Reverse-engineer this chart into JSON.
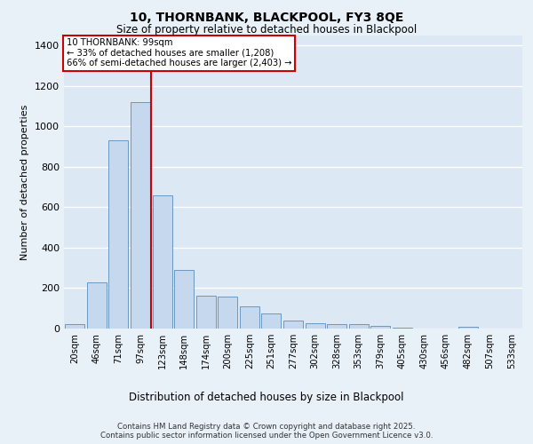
{
  "title_line1": "10, THORNBANK, BLACKPOOL, FY3 8QE",
  "title_line2": "Size of property relative to detached houses in Blackpool",
  "xlabel": "Distribution of detached houses by size in Blackpool",
  "ylabel": "Number of detached properties",
  "categories": [
    "20sqm",
    "46sqm",
    "71sqm",
    "97sqm",
    "123sqm",
    "148sqm",
    "174sqm",
    "200sqm",
    "225sqm",
    "251sqm",
    "277sqm",
    "302sqm",
    "328sqm",
    "353sqm",
    "379sqm",
    "405sqm",
    "430sqm",
    "456sqm",
    "482sqm",
    "507sqm",
    "533sqm"
  ],
  "values": [
    20,
    230,
    930,
    1120,
    660,
    290,
    162,
    158,
    110,
    75,
    40,
    25,
    20,
    20,
    15,
    5,
    0,
    0,
    8,
    0,
    0
  ],
  "bar_color": "#c5d8ed",
  "bar_edge_color": "#5b8db8",
  "vline_x_index": 3,
  "vline_color": "#cc0000",
  "annotation_line1": "10 THORNBANK: 99sqm",
  "annotation_line2": "← 33% of detached houses are smaller (1,208)",
  "annotation_line3": "66% of semi-detached houses are larger (2,403) →",
  "annotation_box_color": "#cc0000",
  "ylim": [
    0,
    1450
  ],
  "yticks": [
    0,
    200,
    400,
    600,
    800,
    1000,
    1200,
    1400
  ],
  "background_color": "#dde8f5",
  "grid_color": "#ffffff",
  "fig_background_color": "#e8f0f8",
  "footer_line1": "Contains HM Land Registry data © Crown copyright and database right 2025.",
  "footer_line2": "Contains public sector information licensed under the Open Government Licence v3.0."
}
